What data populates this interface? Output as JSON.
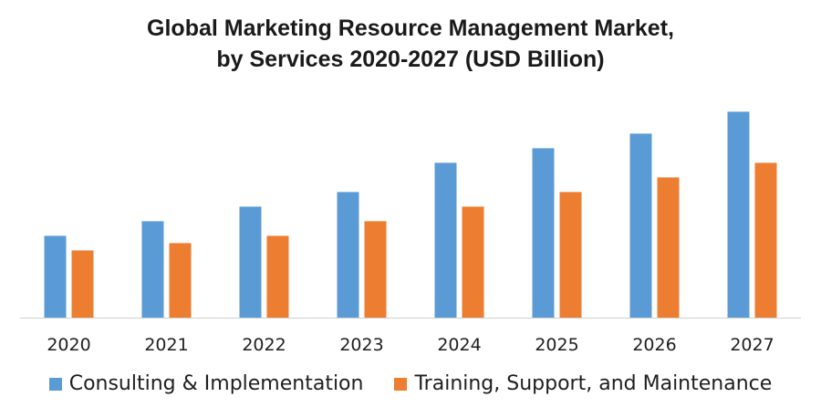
{
  "chart_data": {
    "type": "bar",
    "title": "Global Marketing Resource Management Market,",
    "subtitle": "by Services 2020-2027 (USD Billion)",
    "xlabel": "",
    "ylabel": "",
    "categories": [
      "2020",
      "2021",
      "2022",
      "2023",
      "2024",
      "2025",
      "2026",
      "2027"
    ],
    "series": [
      {
        "name": "Consulting & Implementation",
        "color": "#5B9BD5",
        "values": [
          5.6,
          6.6,
          7.6,
          8.6,
          10.6,
          11.6,
          12.6,
          14.1
        ]
      },
      {
        "name": "Training, Support, and Maintenance",
        "color": "#ED7D31",
        "values": [
          4.6,
          5.1,
          5.6,
          6.6,
          7.6,
          8.6,
          9.6,
          10.6
        ]
      }
    ],
    "ylim": [
      0,
      16
    ],
    "grid": false,
    "legend_position": "bottom"
  }
}
